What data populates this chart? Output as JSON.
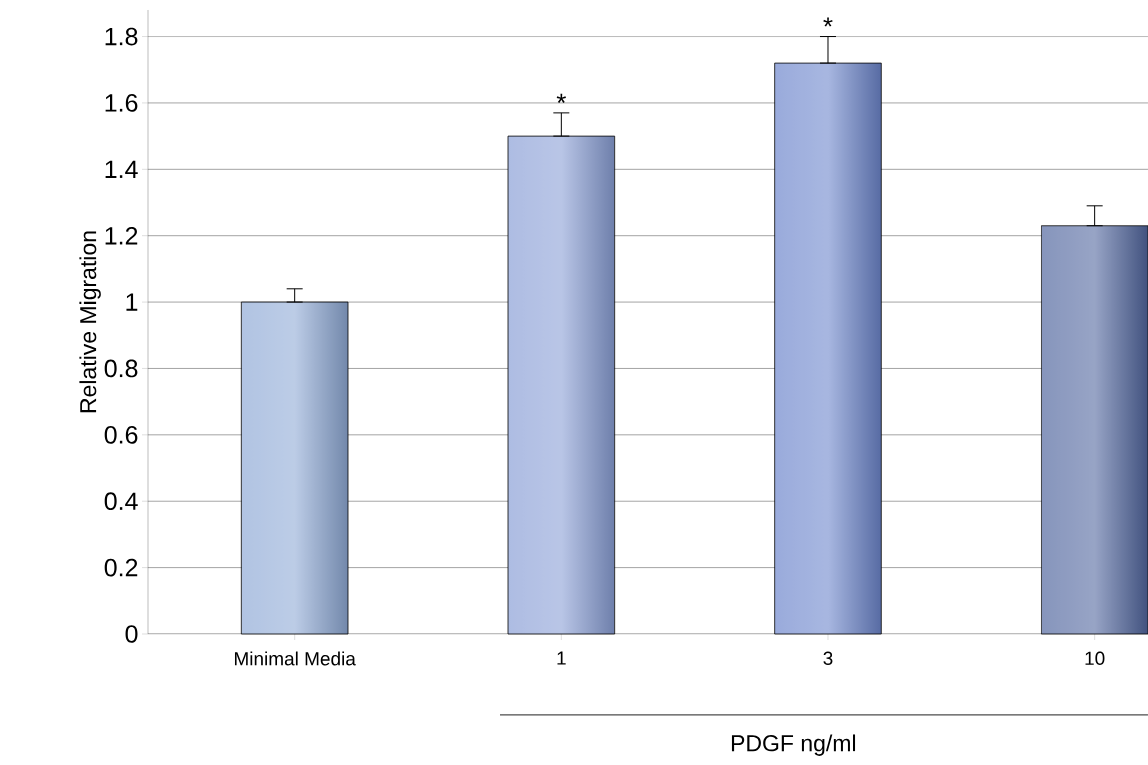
{
  "chart_data": {
    "type": "bar",
    "ylabel": "Relative Migration",
    "xlabel": "PDGF ng/ml",
    "categories": [
      "Minimal Media",
      "1",
      "3",
      "10"
    ],
    "values": [
      1.0,
      1.5,
      1.72,
      1.23
    ],
    "errors": [
      [
        1.0,
        1.04
      ],
      [
        1.5,
        1.57
      ],
      [
        1.72,
        1.8
      ],
      [
        1.23,
        1.29
      ]
    ],
    "colors": [
      "#8faad6",
      "#8a9fd6",
      "#6d86cc",
      "#52679f"
    ],
    "ylim": [
      0,
      1.88
    ],
    "yticks": [
      0,
      0.2,
      0.4,
      0.6,
      0.8,
      1,
      1.2,
      1.4,
      1.6,
      1.8
    ],
    "grid": "y",
    "annotations": [
      {
        "text": "*",
        "x": "1",
        "y": 1.57
      },
      {
        "text": "*",
        "x": "3",
        "y": 1.8
      }
    ]
  }
}
